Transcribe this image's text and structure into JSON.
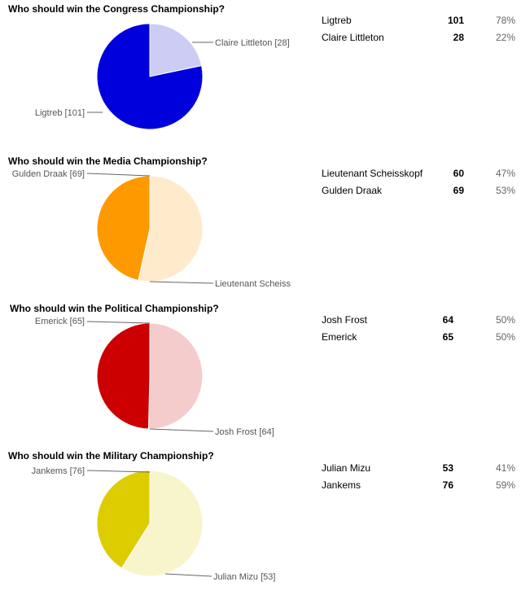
{
  "chart_data": [
    {
      "type": "pie",
      "title": "Who should win the Congress Championship?",
      "slices": [
        {
          "label": "Ligtreb [101]",
          "name": "Ligtreb",
          "value": 101,
          "percent": "78%",
          "color": "#0000dd"
        },
        {
          "label": "Claire Littleton [28]",
          "name": "Claire Littleton",
          "value": 28,
          "percent": "22%",
          "color": "#ccccf5"
        }
      ]
    },
    {
      "type": "pie",
      "title": "Who should win the Media Championship?",
      "slices": [
        {
          "label": "Lieutenant Scheiss",
          "name": "Lieutenant Scheisskopf",
          "value": 60,
          "percent": "47%",
          "color": "#ff9900"
        },
        {
          "label": "Gulden Draak [69]",
          "name": "Gulden Draak",
          "value": 69,
          "percent": "53%",
          "color": "#ffebcc"
        }
      ]
    },
    {
      "type": "pie",
      "title": "Who should win the Political Championship?",
      "slices": [
        {
          "label": "Josh Frost [64]",
          "name": "Josh Frost",
          "value": 64,
          "percent": "50%",
          "color": "#cc0000"
        },
        {
          "label": "Emerick [65]",
          "name": "Emerick",
          "value": 65,
          "percent": "50%",
          "color": "#f5cccc"
        }
      ]
    },
    {
      "type": "pie",
      "title": "Who should win the Military Championship?",
      "slices": [
        {
          "label": "Julian Mizu [53]",
          "name": "Julian Mizu",
          "value": 53,
          "percent": "41%",
          "color": "#ddcc00"
        },
        {
          "label": "Jankems [76]",
          "name": "Jankems",
          "value": 76,
          "percent": "59%",
          "color": "#f8f5cc"
        }
      ]
    }
  ]
}
